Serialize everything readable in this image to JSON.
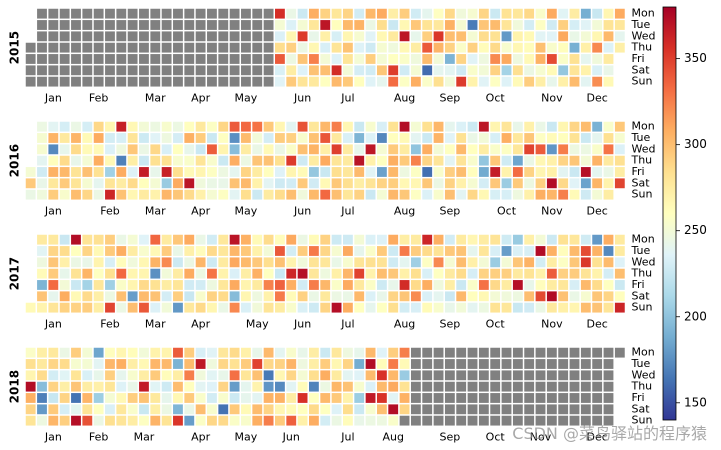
{
  "chart_data": {
    "type": "heatmap",
    "years": [
      {
        "label": "2015",
        "first_weekday": 3,
        "days": 365,
        "data_start": 151,
        "data_end": 364,
        "month_label_weeks": [
          2,
          6,
          11,
          15,
          19,
          24,
          28,
          33,
          37,
          41,
          46,
          50
        ]
      },
      {
        "label": "2016",
        "first_weekday": 4,
        "days": 366,
        "data_start": 0,
        "data_end": 365,
        "month_label_weeks": [
          2,
          7,
          11,
          15,
          19,
          24,
          28,
          33,
          37,
          42,
          46,
          50
        ]
      },
      {
        "label": "2017",
        "first_weekday": 6,
        "days": 365,
        "data_start": 0,
        "data_end": 364,
        "month_label_weeks": [
          2,
          7,
          11,
          15,
          20,
          24,
          28,
          33,
          37,
          41,
          46,
          50
        ]
      },
      {
        "label": "2018",
        "first_weekday": 0,
        "days": 365,
        "data_start": 0,
        "data_end": 236,
        "month_label_weeks": [
          2,
          6,
          10,
          15,
          19,
          23,
          28,
          32,
          37,
          41,
          45,
          50
        ]
      }
    ],
    "month_labels": [
      "Jan",
      "Feb",
      "Mar",
      "Apr",
      "May",
      "Jun",
      "Jul",
      "Aug",
      "Sep",
      "Oct",
      "Nov",
      "Dec"
    ],
    "weekday_labels": [
      "Mon",
      "Tue",
      "Wed",
      "Thu",
      "Fri",
      "Sat",
      "Sun"
    ],
    "colorbar": {
      "min": 140,
      "max": 380,
      "ticks": [
        150,
        200,
        250,
        300,
        350
      ],
      "colormap": "RdYlBu_r"
    },
    "missing_color": "#808080",
    "colors": [
      "#313695",
      "#4575b4",
      "#74add1",
      "#abd9e9",
      "#e0f3f8",
      "#ffffbf",
      "#fee090",
      "#fdae61",
      "#f46d43",
      "#d73027",
      "#a50026"
    ]
  },
  "watermark": "CSDN @菜鸟驿站的程序猿"
}
